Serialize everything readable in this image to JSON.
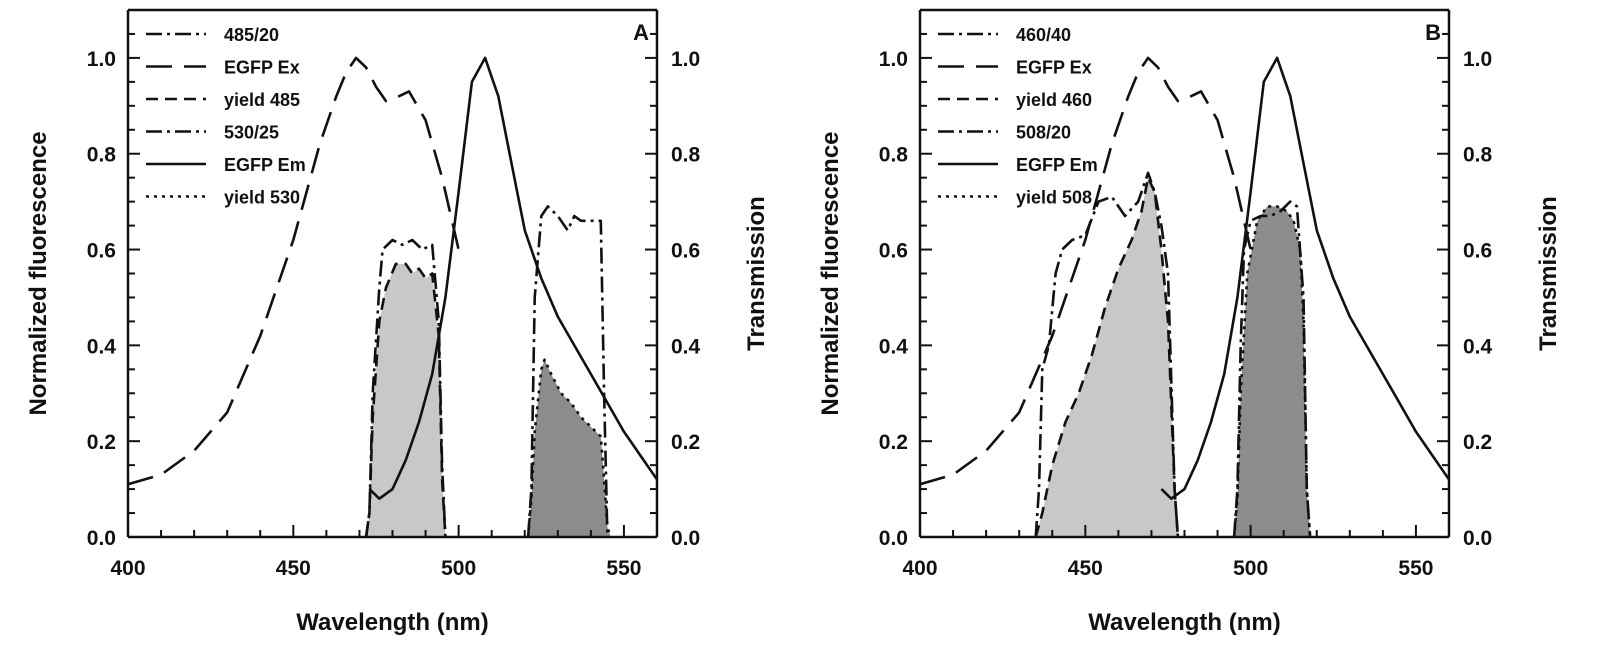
{
  "chart_data": [
    {
      "type": "line",
      "panel_label": "A",
      "xlabel": "Wavelength (nm)",
      "ylabel": "Normalized fluorescence",
      "y2label": "Transmission",
      "xlim": [
        400,
        560
      ],
      "ylim": [
        0,
        1.1
      ],
      "y2lim": [
        0,
        1.1
      ],
      "x_ticks": [
        400,
        450,
        500,
        550
      ],
      "y_ticks": [
        "0.0",
        "0.2",
        "0.4",
        "0.6",
        "0.8",
        "1.0"
      ],
      "y2_ticks": [
        "0.0",
        "0.2",
        "0.4",
        "0.6",
        "0.8",
        "1.0"
      ],
      "legend": {
        "position": "top-left",
        "entries": [
          "485/20",
          "EGFP Ex",
          "yield 485",
          "530/25",
          "EGFP Em",
          "yield 530"
        ]
      },
      "series": [
        {
          "name": "485/20",
          "style": "dash-dot",
          "x": [
            472,
            473,
            474,
            476,
            477,
            480,
            483,
            486,
            489,
            492,
            494,
            495,
            496
          ],
          "y": [
            0.0,
            0.05,
            0.3,
            0.52,
            0.6,
            0.62,
            0.61,
            0.62,
            0.6,
            0.61,
            0.45,
            0.15,
            0.0
          ]
        },
        {
          "name": "EGFP Ex",
          "style": "long-dash",
          "x": [
            400,
            410,
            420,
            430,
            440,
            450,
            458,
            463,
            466,
            469,
            472,
            475,
            478,
            482,
            485,
            490,
            495,
            500
          ],
          "y": [
            0.11,
            0.13,
            0.18,
            0.26,
            0.42,
            0.62,
            0.82,
            0.92,
            0.97,
            1.0,
            0.98,
            0.94,
            0.91,
            0.92,
            0.93,
            0.87,
            0.75,
            0.6
          ]
        },
        {
          "name": "yield 485",
          "style": "short-dash",
          "fill": "#c8c8c8",
          "x": [
            472,
            473,
            474,
            476,
            478,
            481,
            484,
            486,
            488,
            490,
            492,
            494,
            495,
            496
          ],
          "y": [
            0.0,
            0.05,
            0.25,
            0.45,
            0.52,
            0.57,
            0.57,
            0.55,
            0.56,
            0.54,
            0.55,
            0.42,
            0.12,
            0.0
          ]
        },
        {
          "name": "530/25",
          "style": "dash-dot",
          "x": [
            521,
            522,
            523,
            525,
            527,
            530,
            533,
            535,
            537,
            540,
            543,
            544,
            545
          ],
          "y": [
            0.0,
            0.1,
            0.5,
            0.67,
            0.69,
            0.67,
            0.64,
            0.67,
            0.66,
            0.66,
            0.66,
            0.3,
            0.0
          ]
        },
        {
          "name": "EGFP Em",
          "style": "solid",
          "x": [
            473,
            476,
            480,
            484,
            488,
            492,
            496,
            500,
            504,
            508,
            512,
            516,
            520,
            525,
            530,
            540,
            550,
            560
          ],
          "y": [
            0.1,
            0.08,
            0.1,
            0.16,
            0.24,
            0.34,
            0.5,
            0.72,
            0.95,
            1.0,
            0.92,
            0.78,
            0.64,
            0.54,
            0.46,
            0.34,
            0.22,
            0.12
          ]
        },
        {
          "name": "yield 530",
          "style": "dotted",
          "fill": "#8c8c8c",
          "x": [
            521,
            522,
            523,
            525,
            526,
            528,
            531,
            534,
            537,
            540,
            543,
            544,
            545,
            546
          ],
          "y": [
            0.0,
            0.08,
            0.22,
            0.35,
            0.37,
            0.34,
            0.3,
            0.28,
            0.25,
            0.23,
            0.21,
            0.12,
            0.02,
            0.0
          ]
        }
      ]
    },
    {
      "type": "line",
      "panel_label": "B",
      "xlabel": "Wavelength (nm)",
      "ylabel": "Normalized fluorescence",
      "y2label": "Transmission",
      "xlim": [
        400,
        560
      ],
      "ylim": [
        0,
        1.1
      ],
      "y2lim": [
        0,
        1.1
      ],
      "x_ticks": [
        400,
        450,
        500,
        550
      ],
      "y_ticks": [
        "0.0",
        "0.2",
        "0.4",
        "0.6",
        "0.8",
        "1.0"
      ],
      "y2_ticks": [
        "0.0",
        "0.2",
        "0.4",
        "0.6",
        "0.8",
        "1.0"
      ],
      "legend": {
        "position": "top-left",
        "entries": [
          "460/40",
          "EGFP Ex",
          "yield 460",
          "508/20",
          "EGFP Em",
          "yield 508"
        ]
      },
      "series": [
        {
          "name": "460/40",
          "style": "dash-dot",
          "x": [
            435,
            436,
            437,
            439,
            441,
            443,
            446,
            450,
            454,
            458,
            462,
            466,
            469,
            471,
            473,
            475,
            477,
            478
          ],
          "y": [
            0.0,
            0.1,
            0.35,
            0.4,
            0.55,
            0.6,
            0.62,
            0.63,
            0.7,
            0.71,
            0.67,
            0.7,
            0.76,
            0.72,
            0.65,
            0.55,
            0.1,
            0.0
          ]
        },
        {
          "name": "EGFP Ex",
          "style": "long-dash",
          "x": [
            400,
            410,
            420,
            430,
            440,
            450,
            458,
            463,
            466,
            469,
            472,
            475,
            478,
            482,
            485,
            490,
            495,
            500
          ],
          "y": [
            0.11,
            0.13,
            0.18,
            0.26,
            0.42,
            0.62,
            0.82,
            0.92,
            0.97,
            1.0,
            0.98,
            0.94,
            0.91,
            0.92,
            0.93,
            0.87,
            0.75,
            0.6
          ]
        },
        {
          "name": "yield 460",
          "style": "short-dash",
          "fill": "#c8c8c8",
          "x": [
            435,
            437,
            440,
            444,
            448,
            452,
            456,
            460,
            464,
            467,
            469,
            471,
            473,
            475,
            477,
            478
          ],
          "y": [
            0.0,
            0.05,
            0.15,
            0.24,
            0.3,
            0.38,
            0.48,
            0.56,
            0.62,
            0.68,
            0.75,
            0.72,
            0.6,
            0.45,
            0.1,
            0.0
          ]
        },
        {
          "name": "508/20",
          "style": "dash-dot",
          "x": [
            495,
            496,
            497,
            498,
            500,
            503,
            506,
            509,
            512,
            514,
            516,
            517,
            518
          ],
          "y": [
            0.0,
            0.1,
            0.4,
            0.6,
            0.66,
            0.67,
            0.67,
            0.68,
            0.7,
            0.69,
            0.5,
            0.1,
            0.0
          ]
        },
        {
          "name": "EGFP Em",
          "style": "solid",
          "x": [
            473,
            476,
            480,
            484,
            488,
            492,
            496,
            500,
            504,
            508,
            512,
            516,
            520,
            525,
            530,
            540,
            550,
            560
          ],
          "y": [
            0.1,
            0.08,
            0.1,
            0.16,
            0.24,
            0.34,
            0.5,
            0.72,
            0.95,
            1.0,
            0.92,
            0.78,
            0.64,
            0.54,
            0.46,
            0.34,
            0.22,
            0.12
          ]
        },
        {
          "name": "yield 508",
          "style": "dotted",
          "fill": "#8c8c8c",
          "x": [
            495,
            496,
            497,
            499,
            502,
            505,
            508,
            511,
            513,
            515,
            516,
            517,
            518
          ],
          "y": [
            0.0,
            0.08,
            0.3,
            0.55,
            0.66,
            0.69,
            0.69,
            0.68,
            0.66,
            0.6,
            0.45,
            0.1,
            0.0
          ]
        }
      ]
    }
  ]
}
